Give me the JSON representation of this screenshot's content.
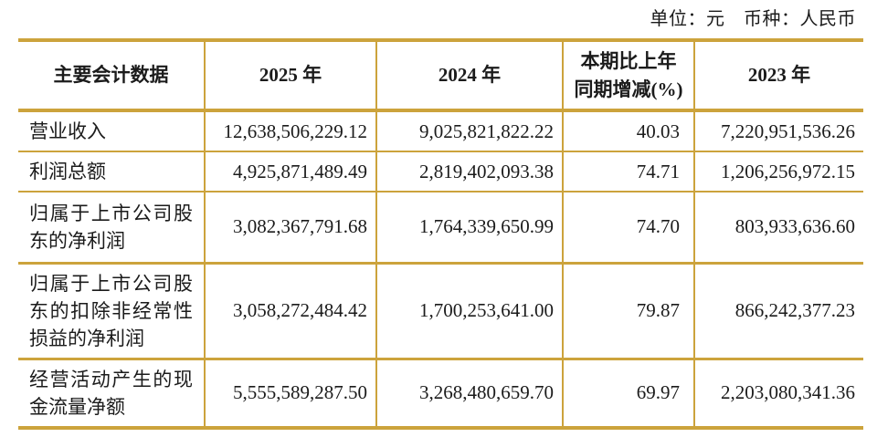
{
  "meta": {
    "unit_currency_note": "单位：元　币种：人民币"
  },
  "colors": {
    "border_gold": "#CCA33C",
    "text": "#1b1b1b"
  },
  "table": {
    "columns": [
      {
        "label": "主要会计数据"
      },
      {
        "label": "2025 年"
      },
      {
        "label": "2024 年"
      },
      {
        "label": "本期比上年\n同期增减(%)"
      },
      {
        "label": "2023 年"
      }
    ],
    "rows": [
      {
        "label": "营业收入",
        "y2025": "12,638,506,229.12",
        "y2024": "9,025,821,822.22",
        "change": "40.03",
        "y2023": "7,220,951,536.26"
      },
      {
        "label": "利润总额",
        "y2025": "4,925,871,489.49",
        "y2024": "2,819,402,093.38",
        "change": "74.71",
        "y2023": "1,206,256,972.15"
      },
      {
        "label": "归属于上市公司股东的净利润",
        "y2025": "3,082,367,791.68",
        "y2024": "1,764,339,650.99",
        "change": "74.70",
        "y2023": "803,933,636.60"
      },
      {
        "label": "归属于上市公司股东的扣除非经常性损益的净利润",
        "y2025": "3,058,272,484.42",
        "y2024": "1,700,253,641.00",
        "change": "79.87",
        "y2023": "866,242,377.23"
      },
      {
        "label": "经营活动产生的现金流量净额",
        "y2025": "5,555,589,287.50",
        "y2024": "3,268,480,659.70",
        "change": "69.97",
        "y2023": "2,203,080,341.36"
      }
    ]
  }
}
